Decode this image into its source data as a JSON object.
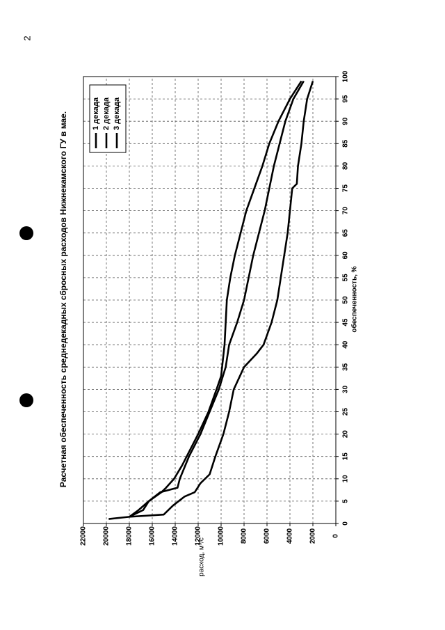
{
  "page_number": "2",
  "chart_data": {
    "type": "line",
    "title": "Расчетная обеспеченность среднедекадных сбросных расходов Нижнекамского ГУ в мае.",
    "x_label": "обеспеченность, %",
    "y_label": "расход, м³/с",
    "xlim": [
      0,
      100
    ],
    "xticks": [
      0,
      5,
      10,
      15,
      20,
      25,
      30,
      35,
      40,
      45,
      50,
      55,
      60,
      65,
      70,
      75,
      80,
      85,
      90,
      95,
      100
    ],
    "ylim": [
      0,
      22000
    ],
    "yticks": [
      0,
      2000,
      4000,
      6000,
      8000,
      10000,
      12000,
      14000,
      16000,
      18000,
      20000,
      22000
    ],
    "grid": true,
    "legend": "upper left",
    "series": [
      {
        "name": "1 декада",
        "color": "#000000",
        "x": [
          1,
          1.5,
          3,
          5,
          7,
          8,
          10,
          13,
          15,
          20,
          25,
          30,
          33,
          40,
          50,
          55,
          60,
          65,
          70,
          75,
          80,
          85,
          90,
          95,
          99
        ],
        "values": [
          19800,
          18000,
          17200,
          16300,
          15200,
          14800,
          14100,
          13400,
          13000,
          12000,
          11100,
          10400,
          10000,
          9700,
          9500,
          9200,
          8800,
          8300,
          7800,
          7100,
          6400,
          5800,
          5000,
          4000,
          3000
        ]
      },
      {
        "name": "2 декада",
        "color": "#000000",
        "x": [
          1.5,
          3,
          5,
          7,
          8,
          10,
          15,
          20,
          25,
          30,
          35,
          40,
          45,
          50,
          55,
          60,
          65,
          70,
          75,
          80,
          85,
          90,
          95,
          99
        ],
        "values": [
          18000,
          16800,
          16300,
          15300,
          13800,
          13600,
          12800,
          11800,
          11000,
          10200,
          9600,
          9300,
          8600,
          8000,
          7600,
          7200,
          6700,
          6200,
          5800,
          5400,
          4900,
          4400,
          3700,
          2800
        ]
      },
      {
        "name": "3 декада",
        "color": "#000000",
        "x": [
          1.5,
          2,
          4,
          6,
          7,
          9,
          11,
          15,
          20,
          25,
          30,
          35,
          38,
          40,
          45,
          50,
          55,
          60,
          65,
          70,
          75,
          76,
          80,
          85,
          90,
          95,
          99
        ],
        "values": [
          18000,
          15000,
          14200,
          13200,
          12300,
          11800,
          11000,
          10500,
          9800,
          9300,
          8900,
          8000,
          6900,
          6300,
          5600,
          5100,
          4800,
          4500,
          4200,
          4000,
          3800,
          3400,
          3300,
          3000,
          2800,
          2500,
          2000
        ]
      }
    ]
  }
}
